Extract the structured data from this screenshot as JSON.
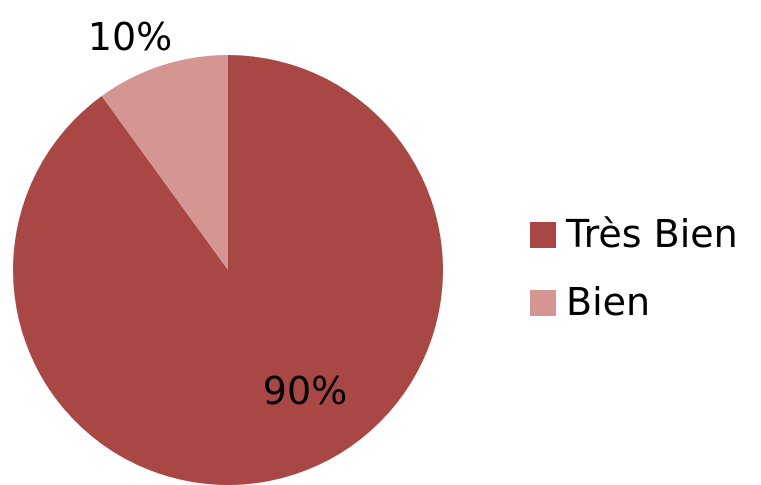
{
  "chart_data": {
    "type": "pie",
    "categories": [
      "Très Bien",
      "Bien"
    ],
    "values": [
      90,
      10
    ],
    "data_labels": [
      "90%",
      "10%"
    ],
    "colors": [
      "#a84744",
      "#d59593"
    ],
    "legend": {
      "position": "right"
    },
    "title": ""
  }
}
